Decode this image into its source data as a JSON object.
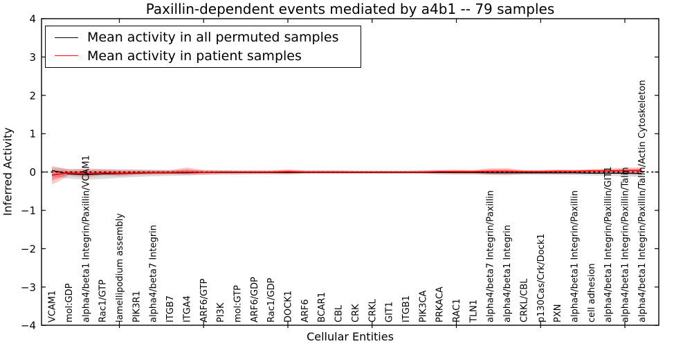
{
  "chart_data": {
    "type": "line",
    "title": "Paxillin-dependent events mediated by a4b1 -- 79 samples",
    "xlabel": "Cellular Entities",
    "ylabel": "Inferred Activity",
    "ylim": [
      -4,
      4
    ],
    "grid": false,
    "legend_position": "upper-left",
    "zero_reference_line": {
      "y": 0,
      "style": "dotted",
      "color": "#000000"
    },
    "yticks": [
      {
        "v": 4,
        "label": "4"
      },
      {
        "v": 3,
        "label": "3"
      },
      {
        "v": 2,
        "label": "2"
      },
      {
        "v": 1,
        "label": "1"
      },
      {
        "v": 0,
        "label": "0"
      },
      {
        "v": -1,
        "label": "−1"
      },
      {
        "v": -2,
        "label": "−2"
      },
      {
        "v": -3,
        "label": "−3"
      },
      {
        "v": -4,
        "label": "−4"
      }
    ],
    "major_x_tick_indices": [
      4,
      9,
      14,
      19,
      24,
      29,
      34
    ],
    "categories": [
      "VCAM1",
      "mol:GDP",
      "alpha4/beta1 Integrin/Paxillin/VCAM1",
      "Rac1/GTP",
      "lamellipodium assembly",
      "PIK3R1",
      "alpha4/beta7 Integrin",
      "ITGB7",
      "ITGA4",
      "ARF6/GTP",
      "PI3K",
      "mol:GTP",
      "ARF6/GDP",
      "Rac1/GDP",
      "DOCK1",
      "ARF6",
      "BCAR1",
      "CBL",
      "CRK",
      "CRKL",
      "GIT1",
      "ITGB1",
      "PIK3CA",
      "PRKACA",
      "RAC1",
      "TLN1",
      "alpha4/beta7 Integrin/Paxillin",
      "alpha4/beta1 Integrin",
      "CRKL/CBL",
      "p130Cas/Crk/Dock1",
      "PXN",
      "alpha4/beta1 Integrin/Paxillin",
      "cell adhesion",
      "alpha4/beta1 Integrin/Paxillin/GIT1",
      "alpha4/beta1 Integrin/Paxillin/Talin",
      "alpha4/beta1 Integrin/Paxillin/Talin/Actin Cytoskeleton"
    ],
    "series": [
      {
        "name": "Mean activity in all permuted samples",
        "color": "#000000",
        "band_color": "rgba(0,0,0,0.14)",
        "values": [
          0.04,
          -0.05,
          -0.07,
          -0.05,
          -0.04,
          -0.03,
          -0.02,
          -0.02,
          -0.02,
          -0.01,
          -0.01,
          -0.01,
          -0.01,
          -0.01,
          -0.01,
          -0.01,
          -0.01,
          -0.01,
          -0.01,
          -0.01,
          -0.01,
          -0.01,
          -0.01,
          -0.01,
          -0.01,
          -0.01,
          -0.02,
          -0.02,
          -0.02,
          -0.02,
          -0.02,
          -0.02,
          -0.03,
          -0.03,
          -0.03,
          -0.04
        ],
        "band_lo": [
          -0.12,
          -0.17,
          -0.2,
          -0.18,
          -0.15,
          -0.13,
          -0.11,
          -0.1,
          -0.09,
          -0.08,
          -0.07,
          -0.07,
          -0.06,
          -0.06,
          -0.06,
          -0.05,
          -0.05,
          -0.05,
          -0.05,
          -0.05,
          -0.05,
          -0.05,
          -0.05,
          -0.06,
          -0.06,
          -0.06,
          -0.07,
          -0.08,
          -0.07,
          -0.07,
          -0.07,
          -0.08,
          -0.09,
          -0.1,
          -0.11,
          -0.13
        ],
        "band_hi": [
          0.12,
          0.08,
          0.07,
          0.07,
          0.06,
          0.06,
          0.06,
          0.05,
          0.05,
          0.05,
          0.05,
          0.04,
          0.04,
          0.04,
          0.04,
          0.04,
          0.04,
          0.04,
          0.03,
          0.03,
          0.03,
          0.03,
          0.04,
          0.04,
          0.04,
          0.04,
          0.04,
          0.04,
          0.04,
          0.04,
          0.04,
          0.04,
          0.04,
          0.04,
          0.05,
          0.05
        ]
      },
      {
        "name": "Mean activity in patient samples",
        "color": "#ff0000",
        "band_color": "rgba(255,0,0,0.22)",
        "inner_band_color": "rgba(255,0,0,0.28)",
        "values": [
          -0.08,
          -0.02,
          -0.04,
          -0.02,
          -0.03,
          -0.02,
          -0.01,
          -0.01,
          0.0,
          -0.01,
          0.0,
          0.0,
          0.0,
          0.0,
          0.01,
          0.0,
          0.0,
          0.0,
          0.0,
          0.0,
          0.0,
          0.0,
          0.0,
          0.01,
          0.01,
          0.01,
          0.02,
          0.02,
          0.01,
          0.01,
          0.02,
          0.02,
          0.03,
          0.03,
          0.04,
          0.04
        ],
        "band_lo": [
          -0.33,
          -0.1,
          -0.14,
          -0.1,
          -0.11,
          -0.08,
          -0.07,
          -0.06,
          -0.07,
          -0.06,
          -0.05,
          -0.05,
          -0.05,
          -0.05,
          -0.06,
          -0.04,
          -0.04,
          -0.04,
          -0.04,
          -0.04,
          -0.04,
          -0.04,
          -0.04,
          -0.05,
          -0.06,
          -0.06,
          -0.07,
          -0.07,
          -0.05,
          -0.05,
          -0.06,
          -0.05,
          -0.04,
          -0.04,
          -0.05,
          -0.06
        ],
        "band_hi": [
          0.16,
          0.07,
          0.09,
          0.08,
          0.07,
          0.06,
          0.05,
          0.05,
          0.12,
          0.05,
          0.04,
          0.04,
          0.04,
          0.04,
          0.07,
          0.04,
          0.04,
          0.04,
          0.03,
          0.03,
          0.03,
          0.03,
          0.04,
          0.05,
          0.06,
          0.05,
          0.1,
          0.1,
          0.05,
          0.05,
          0.07,
          0.06,
          0.08,
          0.09,
          0.11,
          0.12
        ]
      }
    ]
  }
}
